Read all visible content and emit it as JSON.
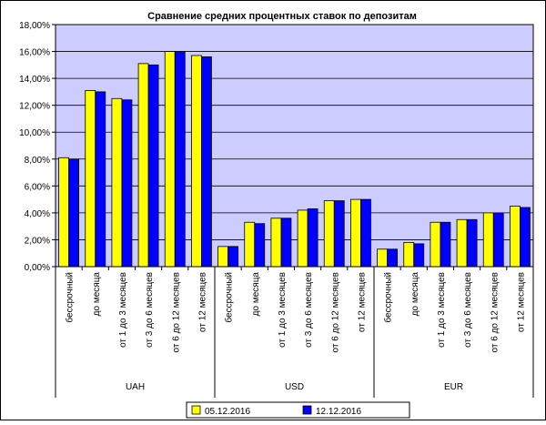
{
  "chart_data": {
    "type": "bar",
    "title": "Сравнение средних процентных ставок по депозитам",
    "ylim": [
      0,
      18
    ],
    "yticks": [
      0,
      2,
      4,
      6,
      8,
      10,
      12,
      14,
      16,
      18
    ],
    "ytick_labels": [
      "0,00%",
      "2,00%",
      "4,00%",
      "6,00%",
      "8,00%",
      "10,00%",
      "12,00%",
      "14,00%",
      "16,00%",
      "18,00%"
    ],
    "y_unit": "%",
    "grid": true,
    "legend_position": "bottom",
    "groups": [
      {
        "name": "UAH",
        "categories": [
          "бессрочный",
          "до месяца",
          "от 1 до 3 месяцев",
          "от 3 до 6 месяцев",
          "от 6 до 12 месяцев",
          "от 12 месяцев"
        ]
      },
      {
        "name": "USD",
        "categories": [
          "бессрочный",
          "до месяца",
          "от 1 до 3 месяцев",
          "от 3 до 6 месяцев",
          "от 6 до 12 месяцев",
          "от 12 месяцев"
        ]
      },
      {
        "name": "EUR",
        "categories": [
          "бессрочный",
          "до месяца",
          "от 1 до 3 месяцев",
          "от 3 до 6 месяцев",
          "от 6 до 12 месяцев",
          "от 12 месяцев"
        ]
      }
    ],
    "series": [
      {
        "name": "05.12.2016",
        "color": "#ffff00",
        "values": [
          8.1,
          13.1,
          12.5,
          15.1,
          16.0,
          15.7,
          1.5,
          3.3,
          3.6,
          4.2,
          4.9,
          5.0,
          1.3,
          1.8,
          3.3,
          3.5,
          4.0,
          4.5
        ]
      },
      {
        "name": "12.12.2016",
        "color": "#0000ff",
        "values": [
          8.0,
          13.0,
          12.4,
          15.0,
          16.0,
          15.6,
          1.5,
          3.2,
          3.6,
          4.3,
          4.9,
          5.0,
          1.3,
          1.7,
          3.3,
          3.5,
          4.0,
          4.4
        ]
      }
    ],
    "colors": {
      "plot_background": "#ccccff",
      "grid": "#000000"
    }
  }
}
